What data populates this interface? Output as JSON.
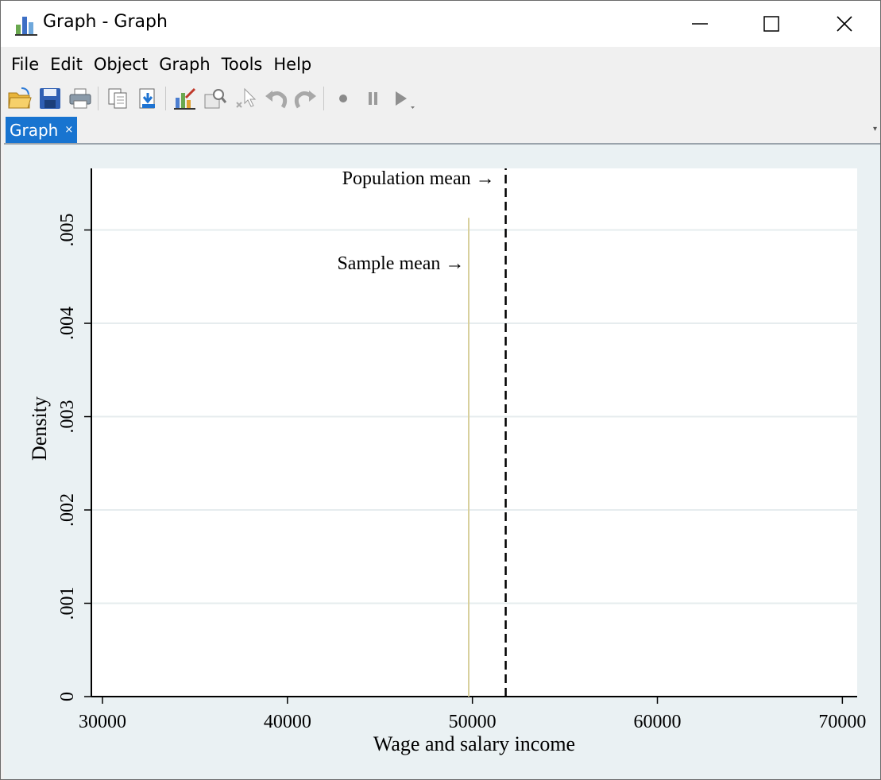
{
  "window": {
    "title": "Graph - Graph",
    "icon": "bar-chart-icon",
    "controls": [
      "minimize-icon",
      "maximize-icon",
      "close-icon"
    ]
  },
  "menu": [
    "File",
    "Edit",
    "Object",
    "Graph",
    "Tools",
    "Help"
  ],
  "toolbar": [
    "open-icon",
    "save-icon",
    "print-icon",
    "copy-icon",
    "save-as-icon",
    "graph-editor-icon",
    "zoom-icon",
    "pointer-icon",
    "undo-icon",
    "redo-icon",
    "record-icon",
    "pause-icon",
    "play-icon"
  ],
  "tab": {
    "label": "Graph",
    "close": "×"
  },
  "colors": {
    "tab_bg": "#1874d0",
    "plot_region_bg": "#eaf1f3",
    "plot_bg": "#ffffff",
    "sample_line": "#d8cf9c",
    "population_line": "#000000"
  },
  "chart_data": {
    "type": "line",
    "xlabel": "Wage and salary income",
    "ylabel": "Density",
    "xlim": [
      29400,
      70800
    ],
    "ylim": [
      0,
      0.00566
    ],
    "xticks": [
      30000,
      40000,
      50000,
      60000,
      70000
    ],
    "xtick_labels": [
      "30000",
      "40000",
      "50000",
      "60000",
      "70000"
    ],
    "yticks": [
      0,
      0.001,
      0.002,
      0.003,
      0.004,
      0.005
    ],
    "ytick_labels": [
      "0",
      ".001",
      ".002",
      ".003",
      ".004",
      ".005"
    ],
    "grid": true,
    "series": [
      {
        "style": "solid",
        "color": "#d8cf9c",
        "x": [
          49800,
          49800
        ],
        "y": [
          0,
          0.00513
        ]
      },
      {
        "style": "dashed",
        "color": "#000000",
        "x": [
          51800,
          51800
        ],
        "y": [
          0,
          0.00566
        ]
      }
    ],
    "annotations": [
      {
        "text": "Population mean →",
        "x": 51200,
        "y": 0.00549
      },
      {
        "text": "Sample mean →",
        "x": 49560,
        "y": 0.00458
      }
    ]
  }
}
